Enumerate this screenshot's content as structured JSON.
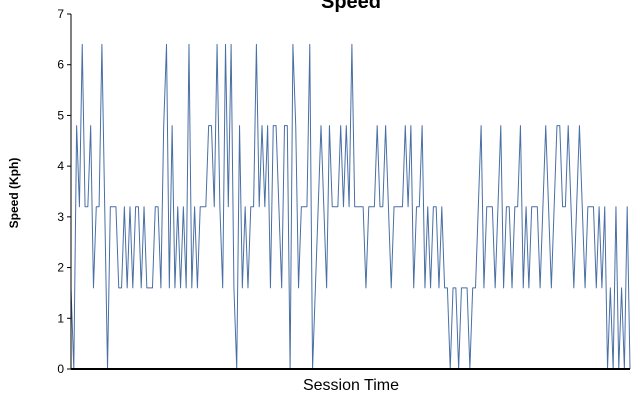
{
  "chart_data": {
    "type": "line",
    "title": "Speed",
    "xlabel": "Session Time",
    "ylabel": "Speed (Kph)",
    "ylim": [
      0,
      7
    ],
    "yticks": [
      0,
      1,
      2,
      3,
      4,
      5,
      6,
      7
    ],
    "grid": false,
    "legend": "none",
    "colors": {
      "line": "#4a6fa5",
      "axis": "#000000"
    },
    "series": [
      {
        "values": [
          1.6,
          0,
          4.8,
          3.2,
          6.4,
          3.2,
          3.2,
          4.8,
          1.6,
          3.2,
          3.2,
          6.4,
          3.2,
          0,
          3.2,
          3.2,
          3.2,
          1.6,
          1.6,
          3.2,
          1.6,
          3.2,
          1.6,
          3.2,
          3.2,
          1.6,
          3.2,
          1.6,
          1.6,
          1.6,
          3.2,
          3.2,
          1.6,
          4.8,
          6.4,
          1.6,
          4.8,
          1.6,
          3.2,
          1.6,
          3.2,
          1.6,
          6.4,
          1.6,
          3.2,
          1.6,
          3.2,
          3.2,
          3.2,
          4.8,
          4.8,
          3.2,
          6.4,
          3.2,
          1.6,
          6.4,
          3.2,
          6.4,
          1.6,
          0,
          4.8,
          1.6,
          3.2,
          1.6,
          3.2,
          3.2,
          6.4,
          3.2,
          4.8,
          3.2,
          4.8,
          1.6,
          4.8,
          4.8,
          3.2,
          1.6,
          4.8,
          4.8,
          0,
          6.4,
          4.8,
          1.6,
          3.2,
          3.2,
          3.2,
          6.4,
          0,
          1.6,
          3.2,
          4.8,
          3.2,
          1.6,
          4.8,
          3.2,
          3.2,
          3.2,
          4.8,
          3.2,
          4.8,
          3.2,
          6.4,
          3.2,
          3.2,
          3.2,
          3.2,
          1.6,
          3.2,
          3.2,
          3.2,
          4.8,
          3.2,
          3.2,
          4.8,
          3.2,
          1.6,
          3.2,
          3.2,
          3.2,
          3.2,
          4.8,
          3.2,
          4.8,
          1.6,
          3.2,
          3.2,
          4.8,
          1.6,
          3.2,
          1.6,
          3.2,
          3.2,
          1.6,
          3.2,
          1.6,
          1.6,
          0,
          1.6,
          1.6,
          0,
          1.6,
          1.6,
          1.6,
          0,
          1.6,
          1.6,
          3.2,
          4.8,
          1.6,
          3.2,
          3.2,
          3.2,
          1.6,
          3.2,
          4.8,
          1.6,
          3.2,
          3.2,
          1.6,
          3.2,
          3.2,
          4.8,
          1.6,
          3.2,
          1.6,
          3.2,
          3.2,
          3.2,
          1.6,
          3.2,
          4.8,
          3.2,
          1.6,
          3.2,
          4.8,
          4.8,
          3.2,
          3.2,
          4.8,
          3.2,
          1.6,
          3.2,
          4.8,
          3.2,
          1.6,
          3.2,
          3.2,
          3.2,
          1.6,
          3.2,
          1.6,
          3.2,
          0,
          1.6,
          0,
          3.2,
          0,
          1.6,
          0,
          3.2,
          0
        ]
      }
    ]
  }
}
